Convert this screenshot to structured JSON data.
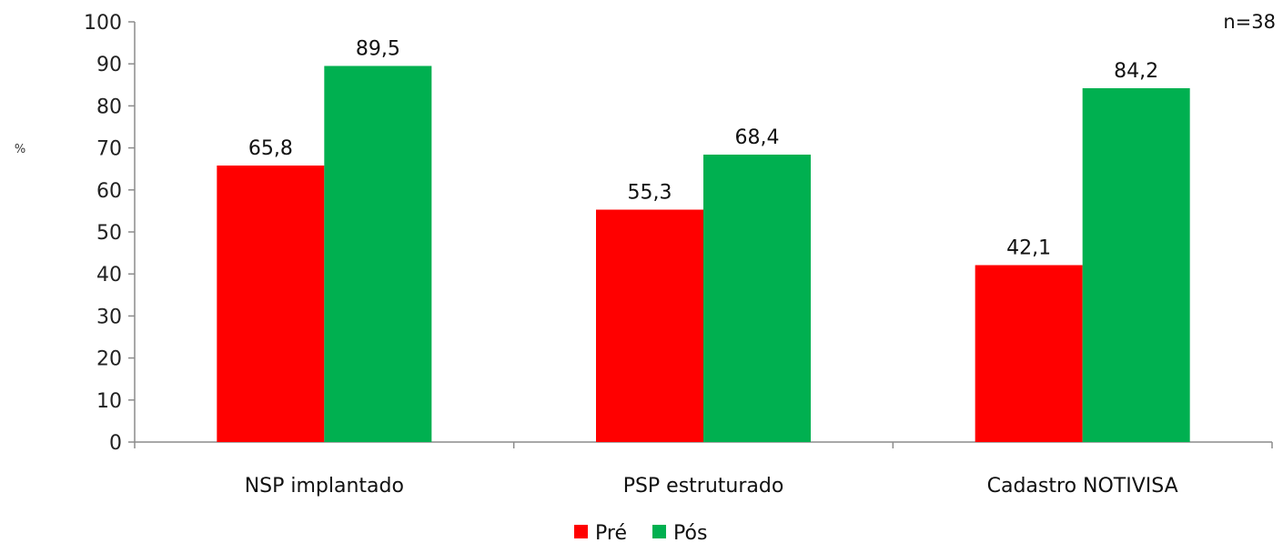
{
  "chart_data": {
    "type": "bar",
    "title": "",
    "xlabel": "",
    "ylabel": "%",
    "annotation": "n=38",
    "ylim": [
      0,
      100
    ],
    "yticks": [
      0,
      10,
      20,
      30,
      40,
      50,
      60,
      70,
      80,
      90,
      100
    ],
    "categories": [
      "NSP implantado",
      "PSP estruturado",
      "Cadastro NOTIVISA"
    ],
    "series": [
      {
        "name": "Pré",
        "color": "#ff0000",
        "values": [
          65.8,
          55.3,
          42.1
        ],
        "labels": [
          "65,8",
          "55,3",
          "42,1"
        ]
      },
      {
        "name": "Pós",
        "color": "#00b050",
        "values": [
          89.5,
          68.4,
          84.2
        ],
        "labels": [
          "89,5",
          "68,4",
          "84,2"
        ]
      }
    ],
    "grid": false,
    "legend": "bottom-center"
  }
}
